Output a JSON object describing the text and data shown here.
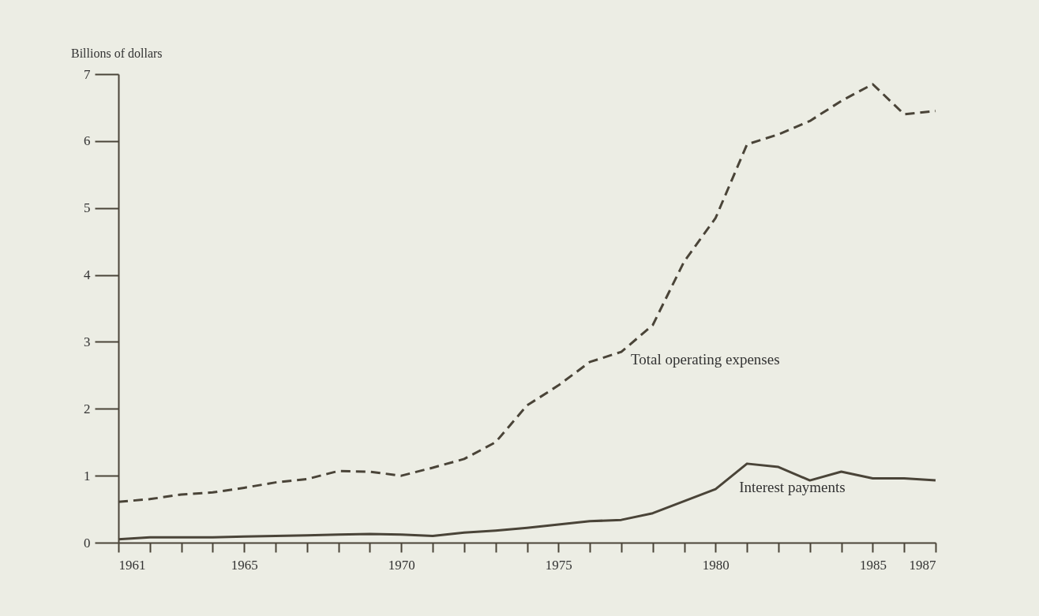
{
  "chart_data": {
    "type": "line",
    "ylabel": "Billions of dollars",
    "x": [
      1961,
      1962,
      1963,
      1964,
      1965,
      1966,
      1967,
      1968,
      1969,
      1970,
      1971,
      1972,
      1973,
      1974,
      1975,
      1976,
      1977,
      1978,
      1979,
      1980,
      1981,
      1982,
      1983,
      1984,
      1985,
      1986,
      1987
    ],
    "series": [
      {
        "name": "Total operating expenses",
        "color": "#4a4438",
        "line_style": "dashed",
        "values": [
          0.61,
          0.65,
          0.72,
          0.75,
          0.82,
          0.9,
          0.95,
          1.07,
          1.06,
          1.0,
          1.12,
          1.25,
          1.5,
          2.05,
          2.35,
          2.7,
          2.85,
          3.25,
          4.2,
          4.85,
          5.95,
          6.1,
          6.3,
          6.6,
          6.85,
          6.4,
          6.45
        ]
      },
      {
        "name": "Interest payments",
        "color": "#4a4438",
        "line_style": "solid",
        "values": [
          0.05,
          0.08,
          0.08,
          0.08,
          0.09,
          0.1,
          0.11,
          0.12,
          0.13,
          0.12,
          0.1,
          0.15,
          0.18,
          0.22,
          0.27,
          0.32,
          0.34,
          0.44,
          0.62,
          0.8,
          1.18,
          1.13,
          0.93,
          1.06,
          0.96,
          0.96,
          0.93
        ]
      }
    ],
    "xlim": [
      1961,
      1987
    ],
    "xticks": [
      1961,
      {
        "value": 1962,
        "label": null
      },
      {
        "value": 1963,
        "label": null
      },
      {
        "value": 1964,
        "label": null
      },
      1965,
      {
        "value": 1966,
        "label": null
      },
      {
        "value": 1967,
        "label": null
      },
      {
        "value": 1968,
        "label": null
      },
      {
        "value": 1969,
        "label": null
      },
      1970,
      {
        "value": 1971,
        "label": null
      },
      {
        "value": 1972,
        "label": null
      },
      {
        "value": 1973,
        "label": null
      },
      {
        "value": 1974,
        "label": null
      },
      1975,
      {
        "value": 1976,
        "label": null
      },
      {
        "value": 1977,
        "label": null
      },
      {
        "value": 1978,
        "label": null
      },
      {
        "value": 1979,
        "label": null
      },
      1980,
      {
        "value": 1981,
        "label": null
      },
      {
        "value": 1982,
        "label": null
      },
      {
        "value": 1983,
        "label": null
      },
      {
        "value": 1984,
        "label": null
      },
      1985,
      {
        "value": 1986,
        "label": null
      },
      1987
    ],
    "ylim": [
      0,
      7
    ],
    "yticks": [
      0,
      1,
      2,
      3,
      4,
      5,
      6,
      7
    ],
    "grid": false,
    "legend": false
  }
}
